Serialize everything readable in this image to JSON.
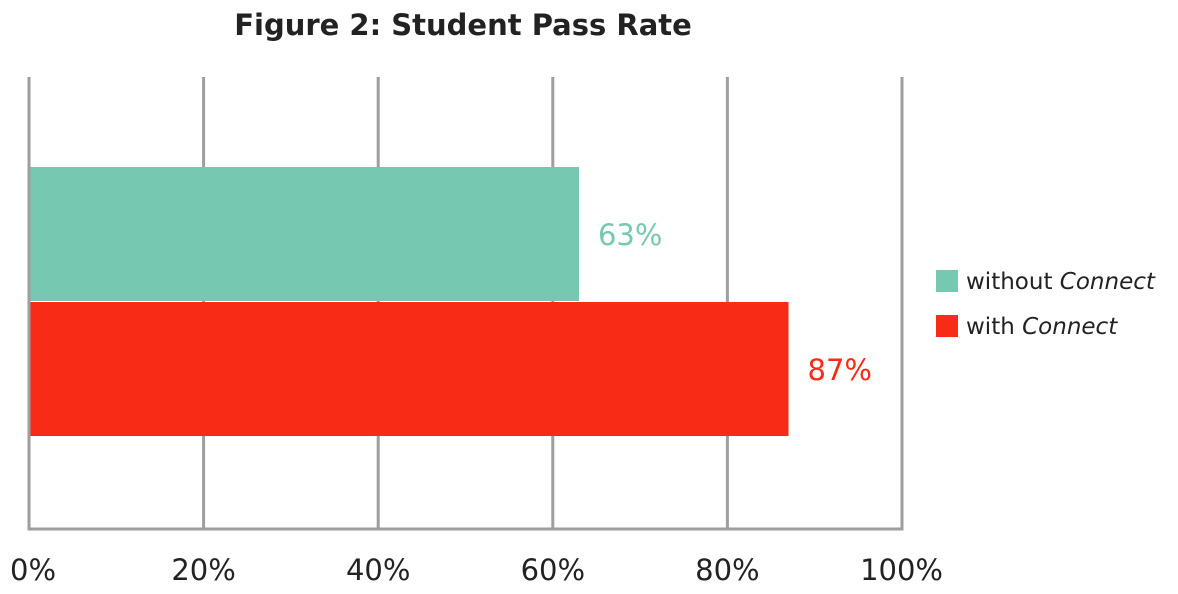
{
  "chart_data": {
    "type": "bar",
    "orientation": "horizontal",
    "title": "Figure 2: Student Pass Rate",
    "xlabel": "",
    "ylabel": "",
    "xlim": [
      0,
      100
    ],
    "x_ticks": [
      "0%",
      "20%",
      "40%",
      "60%",
      "80%",
      "100%"
    ],
    "x_tick_values": [
      0,
      20,
      40,
      60,
      80,
      100
    ],
    "grid": true,
    "legend_position": "right",
    "series": [
      {
        "name_plain": "without ",
        "name_italic": "Connect",
        "value": 63,
        "label": "63%",
        "color": "#76c9b0"
      },
      {
        "name_plain": "with ",
        "name_italic": "Connect",
        "value": 87,
        "label": "87%",
        "color": "#f72b16"
      }
    ]
  }
}
